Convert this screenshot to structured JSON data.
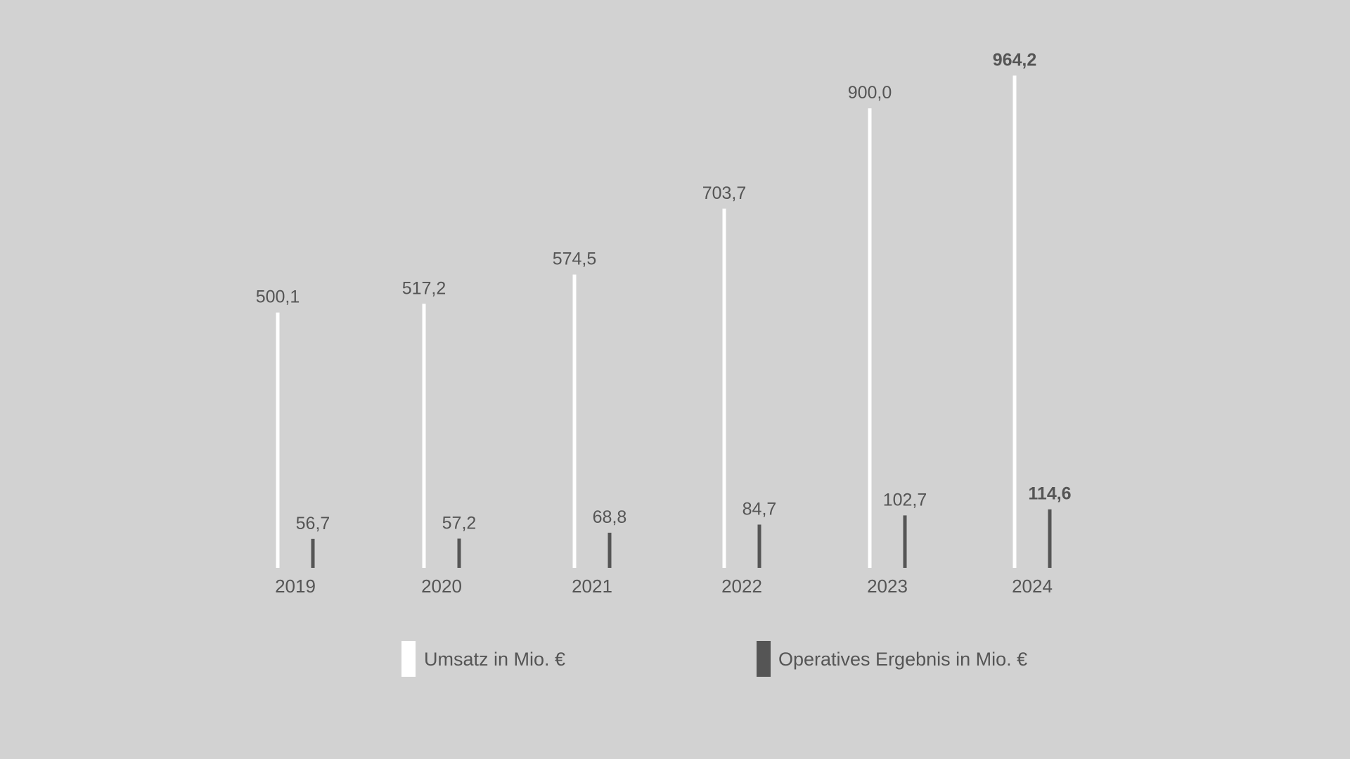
{
  "chart_data": {
    "type": "bar",
    "categories": [
      "2019",
      "2020",
      "2021",
      "2022",
      "2023",
      "2024"
    ],
    "series": [
      {
        "name": "Umsatz in Mio. €",
        "values": [
          500.1,
          517.2,
          574.5,
          703.7,
          900.0,
          964.2
        ],
        "labels": [
          "500,1",
          "517,2",
          "574,5",
          "703,7",
          "900,0",
          "964,2"
        ],
        "color": "#ffffff"
      },
      {
        "name": "Operatives Ergebnis in Mio. €",
        "values": [
          56.7,
          57.2,
          68.8,
          84.7,
          102.7,
          114.6
        ],
        "labels": [
          "56,7",
          "57,2",
          "68,8",
          "84,7",
          "102,7",
          "114,6"
        ],
        "color": "#555555"
      }
    ],
    "highlight_category": "2024",
    "title": "",
    "xlabel": "",
    "ylabel": "",
    "grid": false,
    "legend_position": "bottom"
  }
}
